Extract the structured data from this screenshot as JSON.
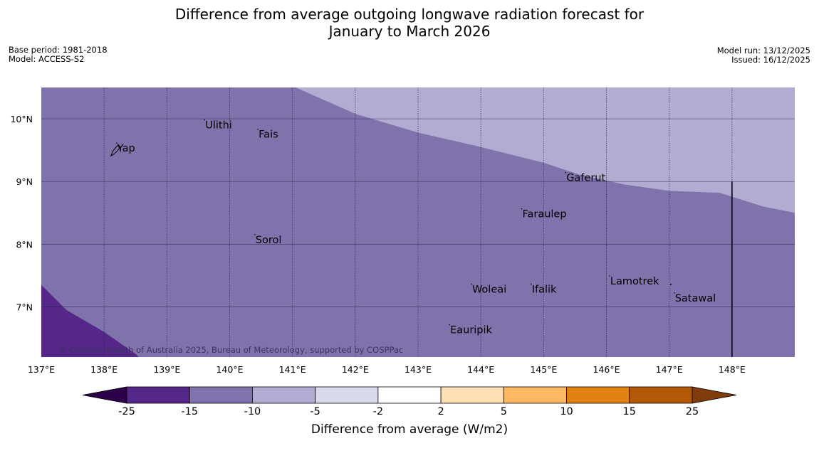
{
  "title": {
    "line1": "Difference from average outgoing longwave radiation forecast for",
    "line2": "January to March 2026"
  },
  "meta": {
    "base_period": "Base period: 1981-2018",
    "model": "Model: ACCESS-S2",
    "model_run": "Model run: 13/12/2025",
    "issued": "Issued: 16/12/2025"
  },
  "copyright": "© Commonwealth of Australia 2025, Bureau of Meteorology, supported by COSPPac",
  "map": {
    "lon_range": [
      137,
      149
    ],
    "lat_range": [
      6.2,
      10.5
    ],
    "lon_ticks": [
      {
        "v": 137,
        "label": "137°E"
      },
      {
        "v": 138,
        "label": "138°E"
      },
      {
        "v": 139,
        "label": "139°E"
      },
      {
        "v": 140,
        "label": "140°E"
      },
      {
        "v": 141,
        "label": "141°E"
      },
      {
        "v": 142,
        "label": "142°E"
      },
      {
        "v": 143,
        "label": "143°E"
      },
      {
        "v": 144,
        "label": "144°E"
      },
      {
        "v": 145,
        "label": "145°E"
      },
      {
        "v": 146,
        "label": "146°E"
      },
      {
        "v": 147,
        "label": "147°E"
      },
      {
        "v": 148,
        "label": "148°E"
      }
    ],
    "lat_ticks": [
      {
        "v": 10,
        "label": "10°N"
      },
      {
        "v": 9,
        "label": "9°N"
      },
      {
        "v": 8,
        "label": "8°N"
      },
      {
        "v": 7,
        "label": "7°N"
      }
    ],
    "places": [
      {
        "name": "Yap",
        "lon": 138.2,
        "lat": 9.5
      },
      {
        "name": "Ulithi",
        "lon": 139.6,
        "lat": 9.87
      },
      {
        "name": "Fais",
        "lon": 140.45,
        "lat": 9.72
      },
      {
        "name": "Gaferut",
        "lon": 145.35,
        "lat": 9.03
      },
      {
        "name": "Faraulep",
        "lon": 144.65,
        "lat": 8.45
      },
      {
        "name": "Sorol",
        "lon": 140.4,
        "lat": 8.04
      },
      {
        "name": "Lamotrek",
        "lon": 146.05,
        "lat": 7.38
      },
      {
        "name": "Woleai",
        "lon": 143.85,
        "lat": 7.25
      },
      {
        "name": "Ifalik",
        "lon": 144.8,
        "lat": 7.25
      },
      {
        "name": "Satawal",
        "lon": 147.08,
        "lat": 7.11
      },
      {
        "name": "Eauripik",
        "lon": 143.5,
        "lat": 6.6
      }
    ],
    "regions": {
      "base_class": "-15 to -10",
      "north_band": {
        "class": "-10 to -5",
        "boundary": [
          [
            141.05,
            10.5
          ],
          [
            142,
            10.08
          ],
          [
            143,
            9.78
          ],
          [
            144,
            9.55
          ],
          [
            145,
            9.3
          ],
          [
            145.6,
            9.1
          ],
          [
            146.3,
            8.95
          ],
          [
            147,
            8.85
          ],
          [
            147.8,
            8.82
          ],
          [
            148.5,
            8.6
          ],
          [
            149,
            8.5
          ]
        ]
      },
      "southwest_patch": {
        "class": "-25 to -15",
        "boundary": [
          [
            137,
            7.35
          ],
          [
            137.4,
            6.95
          ],
          [
            138,
            6.6
          ],
          [
            138.5,
            6.25
          ],
          [
            138.55,
            6.2
          ]
        ]
      },
      "boundary_line_lon": 148,
      "boundary_line_lat_top": 9.0
    }
  },
  "colorbar": {
    "label": "Difference from average (W/m2)",
    "ticks": [
      "-25",
      "-15",
      "-10",
      "-5",
      "-2",
      "2",
      "5",
      "10",
      "15",
      "25"
    ],
    "colors": [
      "#542788",
      "#8073ac",
      "#b2abd2",
      "#d8daeb",
      "#ffffff",
      "#fee0b6",
      "#fdb863",
      "#e08214",
      "#b35806"
    ],
    "extend_low": "#2d004b",
    "extend_high": "#7f3b08"
  }
}
